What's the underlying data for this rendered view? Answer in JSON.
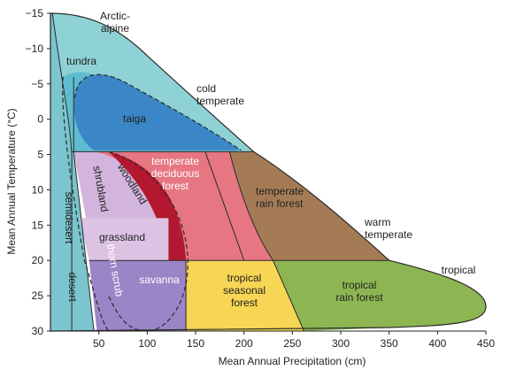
{
  "chart_data": {
    "type": "area",
    "xlabel": "Mean Annual Precipitation (cm)",
    "ylabel": "Mean Annual Temperature (°C)",
    "xlim": [
      0,
      450
    ],
    "ylim": [
      -15,
      30
    ],
    "y_axis_inverted": true,
    "x_ticks": [
      50,
      100,
      150,
      200,
      250,
      300,
      350,
      400,
      450
    ],
    "y_ticks": [
      -15,
      -10,
      -5,
      0,
      5,
      10,
      15,
      20,
      25,
      30
    ],
    "colors": {
      "arctic_alpine": "#8fd2d6",
      "tundra": "#5fbcd0",
      "taiga": "#3b86c6",
      "shrubland": "#d2b4dc",
      "woodland": "#b2182f",
      "temperate_deciduous_forest": "#e57682",
      "temperate_rain_forest": "#a57b56",
      "grassland": "#dcc3e3",
      "savanna": "#9b85c7",
      "thorn_scrub": "#9b85c7",
      "tropical_seasonal_forest": "#f6d654",
      "tropical_rain_forest": "#8db653",
      "desert": "#7ac5ce",
      "semidesert": "#7ac5ce",
      "outline": "#2a2a2a"
    },
    "biomes": [
      {
        "name": "Arctic-alpine",
        "lines": [
          "Arctic-",
          "alpine"
        ]
      },
      {
        "name": "tundra",
        "lines": [
          "tundra"
        ]
      },
      {
        "name": "cold temperate",
        "lines": [
          "cold",
          "temperate"
        ]
      },
      {
        "name": "taiga",
        "lines": [
          "taiga"
        ]
      },
      {
        "name": "temperate deciduous forest",
        "lines": [
          "temperate",
          "deciduous",
          "forest"
        ]
      },
      {
        "name": "woodland",
        "lines": [
          "woodland"
        ]
      },
      {
        "name": "shrubland",
        "lines": [
          "shrubland"
        ]
      },
      {
        "name": "semidesert",
        "lines": [
          "semidesert"
        ]
      },
      {
        "name": "temperate rain forest",
        "lines": [
          "temperate",
          "rain forest"
        ]
      },
      {
        "name": "warm temperate",
        "lines": [
          "warm",
          "temperate"
        ]
      },
      {
        "name": "grassland",
        "lines": [
          "grassland"
        ]
      },
      {
        "name": "thorn scrub",
        "lines": [
          "thorn scrub"
        ]
      },
      {
        "name": "savanna",
        "lines": [
          "savanna"
        ]
      },
      {
        "name": "tropical seasonal forest",
        "lines": [
          "tropical",
          "seasonal",
          "forest"
        ]
      },
      {
        "name": "tropical rain forest",
        "lines": [
          "tropical",
          "rain forest"
        ]
      },
      {
        "name": "tropical",
        "lines": [
          "tropical"
        ]
      },
      {
        "name": "desert",
        "lines": [
          "desert"
        ]
      }
    ]
  }
}
